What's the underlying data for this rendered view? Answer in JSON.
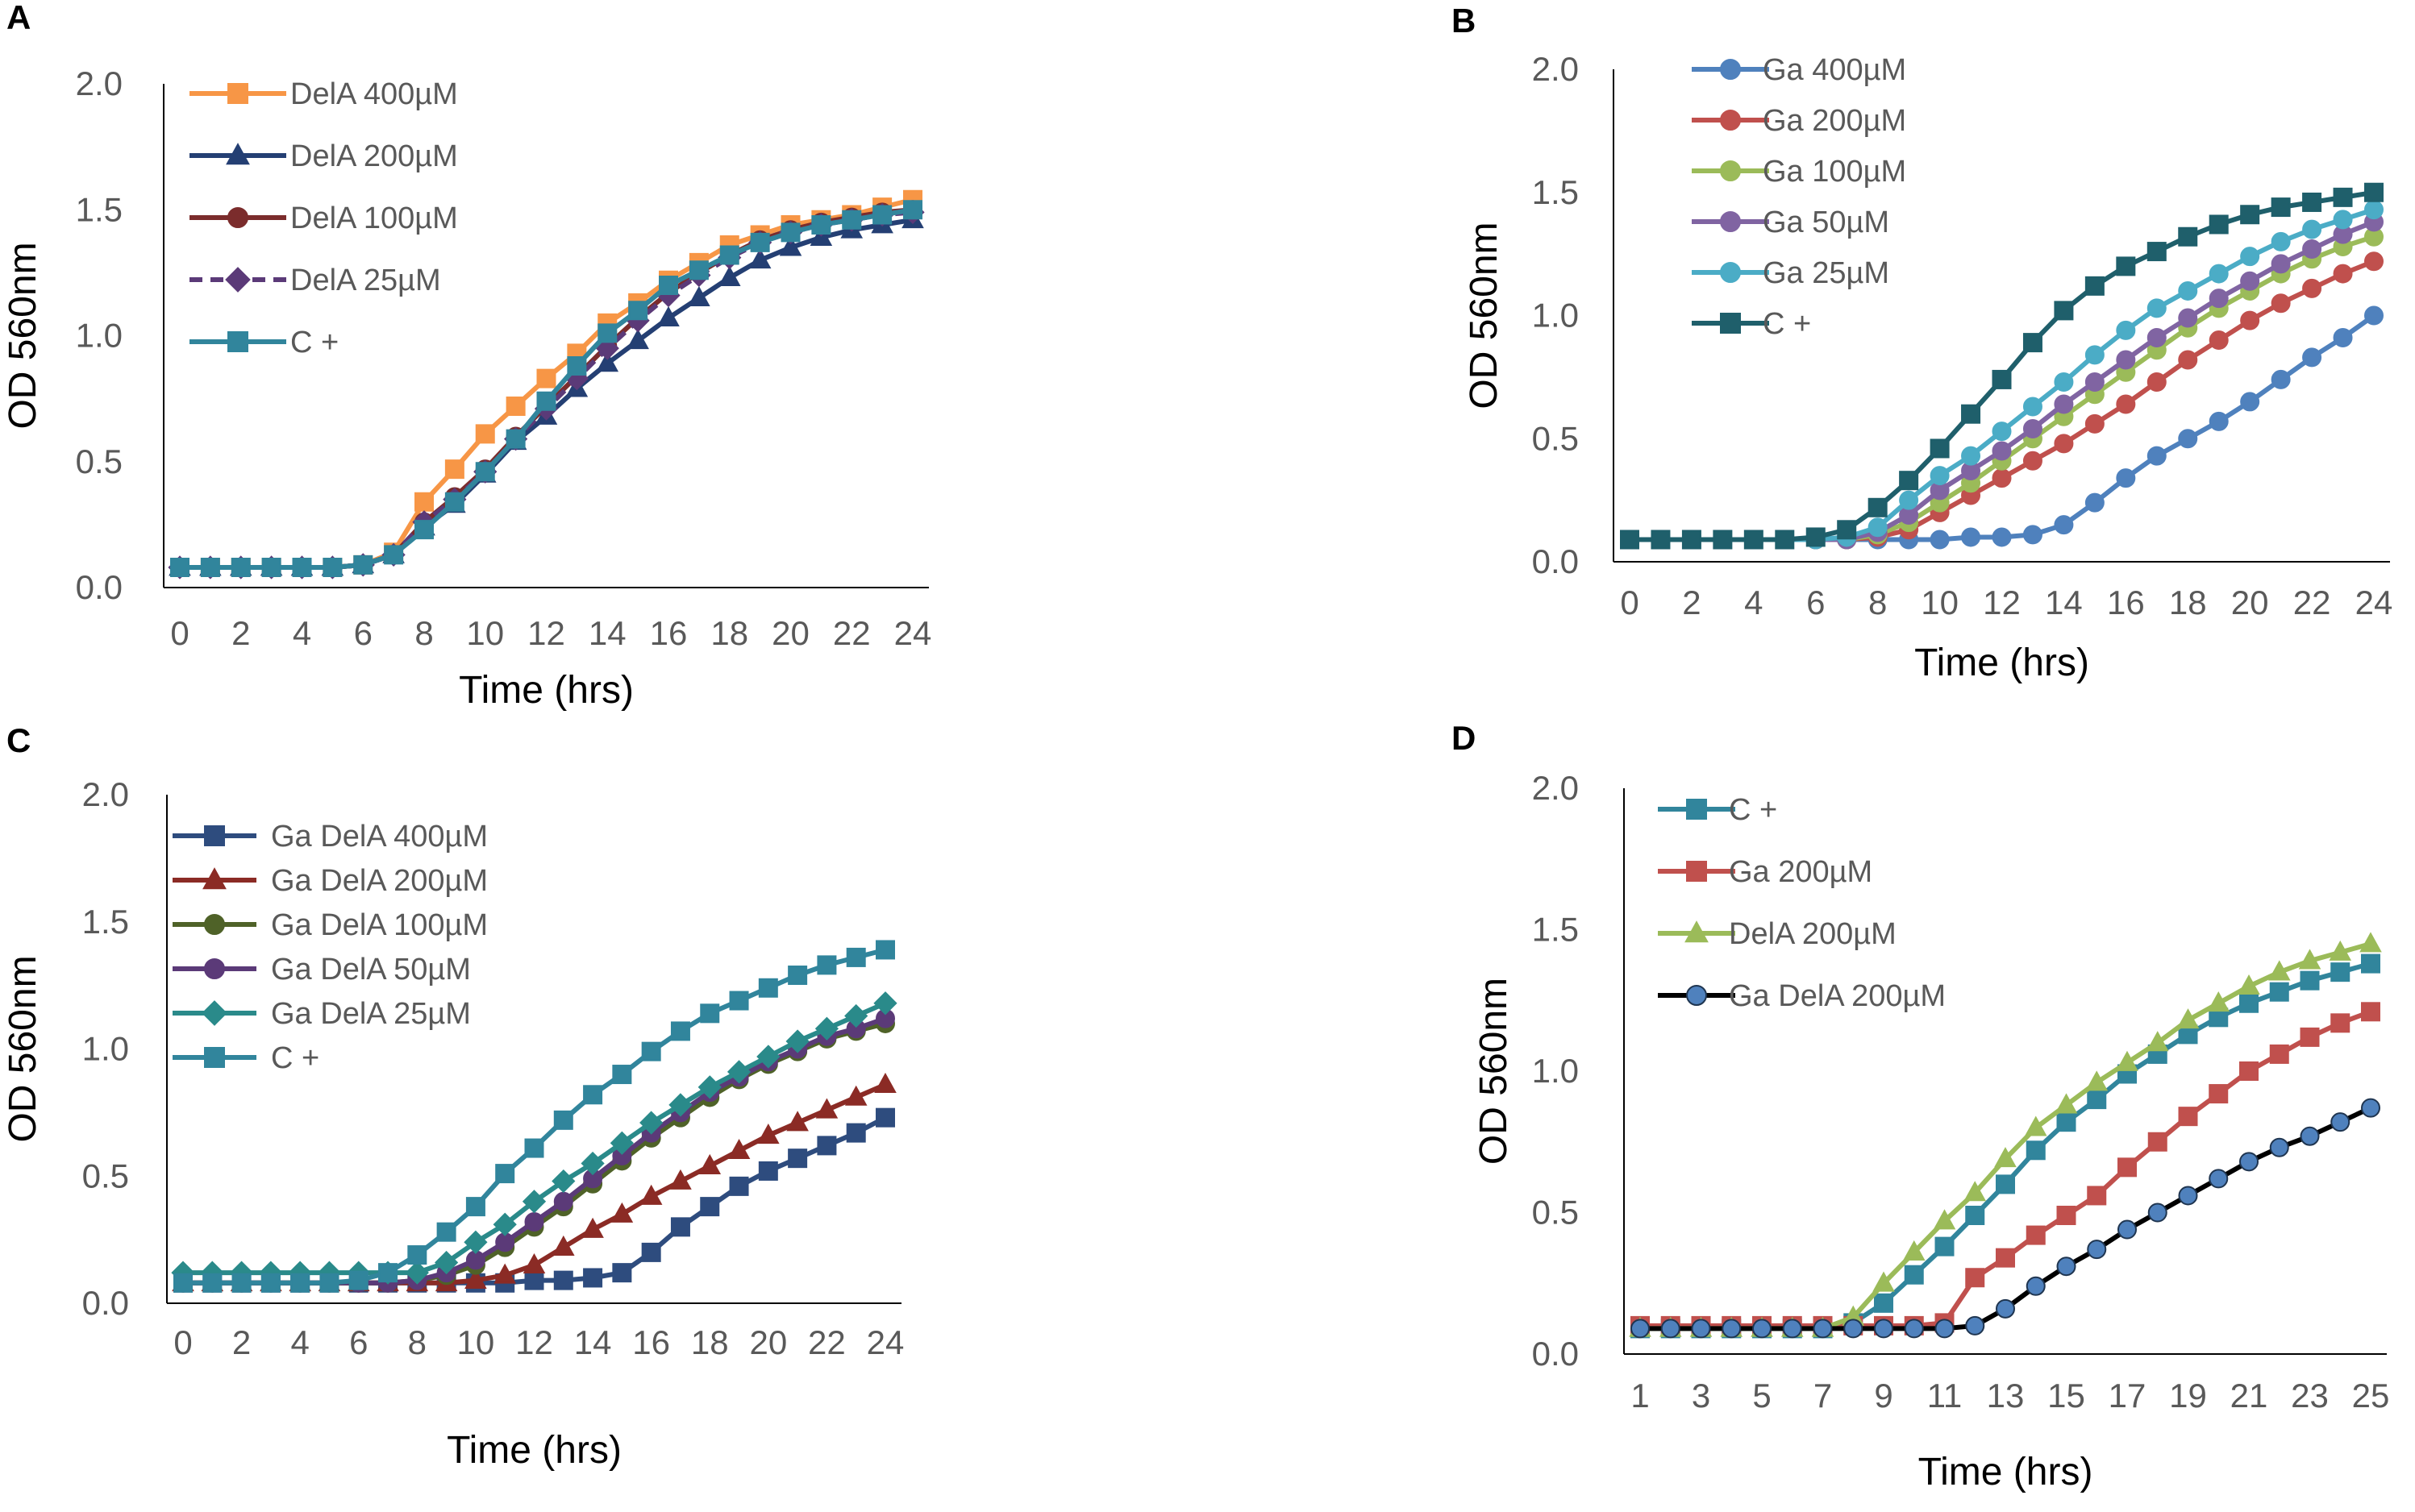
{
  "chart_data": [
    {
      "panel": "A",
      "type": "line",
      "xlabel": "Time (hrs)",
      "ylabel": "OD 560nm",
      "xlim": [
        0,
        24
      ],
      "ylim": [
        0,
        2
      ],
      "x_ticks": [
        "0",
        "2",
        "4",
        "6",
        "8",
        "10",
        "12",
        "14",
        "16",
        "18",
        "20",
        "22",
        "24"
      ],
      "y_ticks": [
        "0.0",
        "0.5",
        "1.0",
        "1.5",
        "2.0"
      ],
      "x": [
        0,
        1,
        2,
        3,
        4,
        5,
        6,
        7,
        8,
        9,
        10,
        11,
        12,
        13,
        14,
        15,
        16,
        17,
        18,
        19,
        20,
        21,
        22,
        23,
        24
      ],
      "legend_position": "top-left",
      "series": [
        {
          "name": "DelA 400µM",
          "color": "#f79646",
          "marker": "square",
          "dash": false,
          "values": [
            0.08,
            0.08,
            0.08,
            0.08,
            0.08,
            0.08,
            0.09,
            0.14,
            0.34,
            0.47,
            0.61,
            0.72,
            0.83,
            0.93,
            1.05,
            1.13,
            1.22,
            1.29,
            1.36,
            1.4,
            1.44,
            1.46,
            1.48,
            1.51,
            1.54
          ]
        },
        {
          "name": "DelA 200µM",
          "color": "#243f73",
          "marker": "triangle",
          "dash": false,
          "values": [
            0.08,
            0.08,
            0.08,
            0.08,
            0.08,
            0.08,
            0.09,
            0.13,
            0.24,
            0.33,
            0.45,
            0.58,
            0.68,
            0.79,
            0.89,
            0.98,
            1.07,
            1.15,
            1.23,
            1.3,
            1.35,
            1.39,
            1.42,
            1.44,
            1.46
          ]
        },
        {
          "name": "DelA 100µM",
          "color": "#7b2c2c",
          "marker": "circle",
          "dash": false,
          "values": [
            0.08,
            0.08,
            0.08,
            0.08,
            0.08,
            0.08,
            0.09,
            0.13,
            0.26,
            0.36,
            0.47,
            0.6,
            0.72,
            0.84,
            0.96,
            1.07,
            1.17,
            1.25,
            1.32,
            1.38,
            1.42,
            1.45,
            1.47,
            1.49,
            1.5
          ]
        },
        {
          "name": "DelA 25µM",
          "color": "#5b3a78",
          "marker": "diamond",
          "dash": true,
          "values": [
            0.08,
            0.08,
            0.08,
            0.08,
            0.08,
            0.08,
            0.09,
            0.13,
            0.26,
            0.35,
            0.46,
            0.59,
            0.71,
            0.83,
            0.95,
            1.06,
            1.16,
            1.24,
            1.31,
            1.37,
            1.41,
            1.44,
            1.46,
            1.48,
            1.49
          ]
        },
        {
          "name": "C  +",
          "color": "#31859c",
          "marker": "square",
          "dash": false,
          "values": [
            0.08,
            0.08,
            0.08,
            0.08,
            0.08,
            0.08,
            0.09,
            0.13,
            0.23,
            0.34,
            0.46,
            0.59,
            0.74,
            0.88,
            1.01,
            1.1,
            1.2,
            1.26,
            1.32,
            1.37,
            1.41,
            1.44,
            1.46,
            1.48,
            1.5
          ]
        }
      ]
    },
    {
      "panel": "B",
      "type": "line",
      "xlabel": "Time (hrs)",
      "ylabel": "OD 560nm",
      "xlim": [
        0,
        24
      ],
      "ylim": [
        0,
        2
      ],
      "x_ticks": [
        "0",
        "2",
        "4",
        "6",
        "8",
        "10",
        "12",
        "14",
        "16",
        "18",
        "20",
        "22",
        "24"
      ],
      "y_ticks": [
        "0.0",
        "0.5",
        "1.0",
        "1.5",
        "2.0"
      ],
      "x": [
        0,
        1,
        2,
        3,
        4,
        5,
        6,
        7,
        8,
        9,
        10,
        11,
        12,
        13,
        14,
        15,
        16,
        17,
        18,
        19,
        20,
        21,
        22,
        23,
        24
      ],
      "legend_position": "top-left",
      "series": [
        {
          "name": "Ga 400µM",
          "color": "#4f81bd",
          "marker": "circle",
          "dash": false,
          "values": [
            0.09,
            0.09,
            0.09,
            0.09,
            0.09,
            0.09,
            0.09,
            0.09,
            0.09,
            0.09,
            0.09,
            0.1,
            0.1,
            0.11,
            0.15,
            0.24,
            0.34,
            0.43,
            0.5,
            0.57,
            0.65,
            0.74,
            0.83,
            0.91,
            1.0
          ]
        },
        {
          "name": "Ga 200µM",
          "color": "#c0504d",
          "marker": "circle",
          "dash": false,
          "values": [
            0.09,
            0.09,
            0.09,
            0.09,
            0.09,
            0.09,
            0.09,
            0.09,
            0.1,
            0.13,
            0.2,
            0.27,
            0.34,
            0.41,
            0.48,
            0.56,
            0.64,
            0.73,
            0.82,
            0.9,
            0.98,
            1.05,
            1.11,
            1.17,
            1.22
          ]
        },
        {
          "name": "Ga 100µM",
          "color": "#9bbb59",
          "marker": "circle",
          "dash": false,
          "values": [
            0.09,
            0.09,
            0.09,
            0.09,
            0.09,
            0.09,
            0.09,
            0.09,
            0.11,
            0.16,
            0.24,
            0.32,
            0.41,
            0.5,
            0.59,
            0.68,
            0.77,
            0.86,
            0.95,
            1.03,
            1.1,
            1.17,
            1.23,
            1.28,
            1.32
          ]
        },
        {
          "name": "Ga 50µM",
          "color": "#8064a2",
          "marker": "circle",
          "dash": false,
          "values": [
            0.09,
            0.09,
            0.09,
            0.09,
            0.09,
            0.09,
            0.09,
            0.09,
            0.12,
            0.19,
            0.29,
            0.37,
            0.45,
            0.54,
            0.64,
            0.73,
            0.82,
            0.91,
            0.99,
            1.07,
            1.14,
            1.21,
            1.27,
            1.33,
            1.38
          ]
        },
        {
          "name": "Ga 25µM",
          "color": "#4bacc6",
          "marker": "circle",
          "dash": false,
          "values": [
            0.09,
            0.09,
            0.09,
            0.09,
            0.09,
            0.09,
            0.09,
            0.1,
            0.14,
            0.25,
            0.35,
            0.43,
            0.53,
            0.63,
            0.73,
            0.84,
            0.94,
            1.03,
            1.1,
            1.17,
            1.24,
            1.3,
            1.35,
            1.39,
            1.43
          ]
        },
        {
          "name": "C  +",
          "color": "#1f5f6b",
          "marker": "square",
          "dash": false,
          "values": [
            0.09,
            0.09,
            0.09,
            0.09,
            0.09,
            0.09,
            0.1,
            0.13,
            0.22,
            0.33,
            0.46,
            0.6,
            0.74,
            0.89,
            1.02,
            1.12,
            1.2,
            1.26,
            1.32,
            1.37,
            1.41,
            1.44,
            1.46,
            1.48,
            1.5
          ]
        }
      ]
    },
    {
      "panel": "C",
      "type": "line",
      "xlabel": "Time (hrs)",
      "ylabel": "OD 560nm",
      "xlim": [
        0,
        24
      ],
      "ylim": [
        0,
        2
      ],
      "x_ticks": [
        "0",
        "2",
        "4",
        "6",
        "8",
        "10",
        "12",
        "14",
        "16",
        "18",
        "20",
        "22",
        "24"
      ],
      "y_ticks": [
        "0.0",
        "0.5",
        "1.0",
        "1.5",
        "2.0"
      ],
      "x": [
        0,
        1,
        2,
        3,
        4,
        5,
        6,
        7,
        8,
        9,
        10,
        11,
        12,
        13,
        14,
        15,
        16,
        17,
        18,
        19,
        20,
        21,
        22,
        23,
        24
      ],
      "legend_position": "top-left",
      "series": [
        {
          "name": "Ga DelA 400µM",
          "color": "#2e4c7e",
          "marker": "square",
          "dash": false,
          "values": [
            0.08,
            0.08,
            0.08,
            0.08,
            0.08,
            0.08,
            0.08,
            0.08,
            0.08,
            0.08,
            0.08,
            0.08,
            0.09,
            0.09,
            0.1,
            0.12,
            0.2,
            0.3,
            0.38,
            0.46,
            0.52,
            0.57,
            0.62,
            0.67,
            0.73
          ]
        },
        {
          "name": "Ga DelA 200µM",
          "color": "#8b2b25",
          "marker": "triangle",
          "dash": false,
          "values": [
            0.08,
            0.08,
            0.08,
            0.08,
            0.08,
            0.08,
            0.08,
            0.08,
            0.08,
            0.08,
            0.09,
            0.11,
            0.15,
            0.22,
            0.29,
            0.35,
            0.42,
            0.48,
            0.54,
            0.6,
            0.66,
            0.71,
            0.76,
            0.81,
            0.86
          ]
        },
        {
          "name": "Ga DelA 100µM",
          "color": "#4f6228",
          "marker": "circle",
          "dash": false,
          "values": [
            0.08,
            0.08,
            0.08,
            0.08,
            0.08,
            0.08,
            0.08,
            0.08,
            0.09,
            0.11,
            0.15,
            0.22,
            0.3,
            0.38,
            0.47,
            0.56,
            0.65,
            0.73,
            0.81,
            0.88,
            0.94,
            0.99,
            1.04,
            1.07,
            1.1
          ]
        },
        {
          "name": "Ga DelA 50µM",
          "color": "#5b3a78",
          "marker": "circle",
          "dash": false,
          "values": [
            0.08,
            0.08,
            0.08,
            0.08,
            0.08,
            0.08,
            0.08,
            0.08,
            0.09,
            0.12,
            0.17,
            0.24,
            0.32,
            0.4,
            0.49,
            0.58,
            0.67,
            0.75,
            0.83,
            0.89,
            0.95,
            1.0,
            1.05,
            1.08,
            1.12
          ]
        },
        {
          "name": "Ga DelA 25µM",
          "color": "#2a8a8a",
          "marker": "diamond",
          "dash": false,
          "values": [
            0.12,
            0.12,
            0.12,
            0.12,
            0.12,
            0.12,
            0.12,
            0.12,
            0.12,
            0.16,
            0.24,
            0.31,
            0.4,
            0.48,
            0.55,
            0.63,
            0.71,
            0.78,
            0.85,
            0.91,
            0.97,
            1.03,
            1.08,
            1.13,
            1.18
          ]
        },
        {
          "name": "C  +",
          "color": "#31859c",
          "marker": "square",
          "dash": false,
          "values": [
            0.08,
            0.08,
            0.08,
            0.08,
            0.08,
            0.08,
            0.09,
            0.12,
            0.19,
            0.28,
            0.38,
            0.51,
            0.61,
            0.72,
            0.82,
            0.9,
            0.99,
            1.07,
            1.14,
            1.19,
            1.24,
            1.29,
            1.33,
            1.36,
            1.39
          ]
        }
      ]
    },
    {
      "panel": "D",
      "type": "line",
      "xlabel": "Time (hrs)",
      "ylabel": "OD 560nm",
      "xlim": [
        1,
        25
      ],
      "ylim": [
        0,
        2
      ],
      "x_ticks": [
        "1",
        "3",
        "5",
        "7",
        "9",
        "11",
        "13",
        "15",
        "17",
        "19",
        "21",
        "23",
        "25"
      ],
      "y_ticks": [
        "0.0",
        "0.5",
        "1.0",
        "1.5",
        "2.0"
      ],
      "x": [
        1,
        2,
        3,
        4,
        5,
        6,
        7,
        8,
        9,
        10,
        11,
        12,
        13,
        14,
        15,
        16,
        17,
        18,
        19,
        20,
        21,
        22,
        23,
        24,
        25
      ],
      "legend_position": "top-left",
      "series": [
        {
          "name": "C  +",
          "color": "#31859c",
          "marker": "square",
          "dash": false,
          "values": [
            0.09,
            0.09,
            0.09,
            0.09,
            0.09,
            0.09,
            0.09,
            0.11,
            0.18,
            0.28,
            0.38,
            0.49,
            0.6,
            0.72,
            0.82,
            0.9,
            0.99,
            1.06,
            1.13,
            1.19,
            1.24,
            1.28,
            1.32,
            1.35,
            1.38
          ]
        },
        {
          "name": "Ga 200µM",
          "color": "#c0504d",
          "marker": "square",
          "dash": false,
          "values": [
            0.1,
            0.1,
            0.1,
            0.1,
            0.1,
            0.1,
            0.1,
            0.1,
            0.1,
            0.1,
            0.11,
            0.27,
            0.34,
            0.42,
            0.49,
            0.56,
            0.66,
            0.75,
            0.84,
            0.92,
            1.0,
            1.06,
            1.12,
            1.17,
            1.21
          ]
        },
        {
          "name": "DelA 200µM",
          "color": "#9bbb59",
          "marker": "triangle",
          "dash": false,
          "values": [
            0.09,
            0.09,
            0.09,
            0.09,
            0.09,
            0.09,
            0.09,
            0.13,
            0.25,
            0.36,
            0.47,
            0.57,
            0.69,
            0.8,
            0.88,
            0.96,
            1.03,
            1.1,
            1.18,
            1.24,
            1.3,
            1.35,
            1.39,
            1.42,
            1.45
          ]
        },
        {
          "name": "Ga DelA 200µM",
          "color": "#000000",
          "markerFill": "#4f81bd",
          "marker": "circle",
          "dash": false,
          "values": [
            0.09,
            0.09,
            0.09,
            0.09,
            0.09,
            0.09,
            0.09,
            0.09,
            0.09,
            0.09,
            0.09,
            0.1,
            0.16,
            0.24,
            0.31,
            0.37,
            0.44,
            0.5,
            0.56,
            0.62,
            0.68,
            0.73,
            0.77,
            0.82,
            0.87
          ]
        }
      ]
    }
  ]
}
